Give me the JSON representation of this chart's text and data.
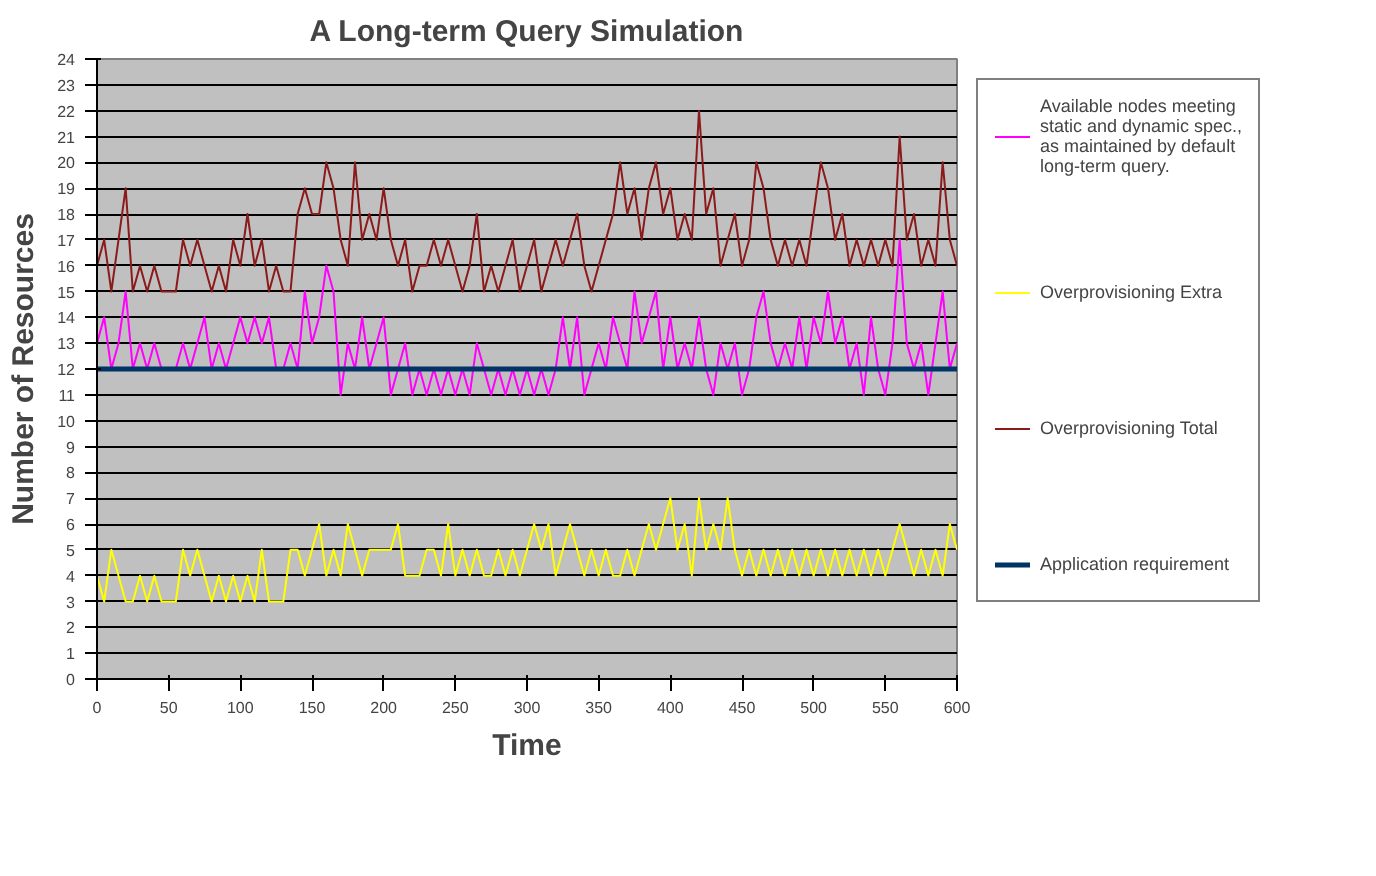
{
  "chart_data": {
    "type": "line",
    "title": "A Long-term Query Simulation",
    "xlabel": "Time",
    "ylabel": "Number of Resources",
    "x": [
      0,
      5,
      10,
      15,
      20,
      25,
      30,
      35,
      40,
      45,
      50,
      55,
      60,
      65,
      70,
      75,
      80,
      85,
      90,
      95,
      100,
      105,
      110,
      115,
      120,
      125,
      130,
      135,
      140,
      145,
      150,
      155,
      160,
      165,
      170,
      175,
      180,
      185,
      190,
      195,
      200,
      205,
      210,
      215,
      220,
      225,
      230,
      235,
      240,
      245,
      250,
      255,
      260,
      265,
      270,
      275,
      280,
      285,
      290,
      295,
      300,
      305,
      310,
      315,
      320,
      325,
      330,
      335,
      340,
      345,
      350,
      355,
      360,
      365,
      370,
      375,
      380,
      385,
      390,
      395,
      400,
      405,
      410,
      415,
      420,
      425,
      430,
      435,
      440,
      445,
      450,
      455,
      460,
      465,
      470,
      475,
      480,
      485,
      490,
      495,
      500,
      505,
      510,
      515,
      520,
      525,
      530,
      535,
      540,
      545,
      550,
      555,
      560,
      565,
      570,
      575,
      580,
      585,
      590,
      595,
      600
    ],
    "series": [
      {
        "name": "Available nodes meeting static and dynamic spec., as maintained by default long-term query.",
        "color": "#ff00ff",
        "values": [
          13,
          14,
          12,
          13,
          15,
          12,
          13,
          12,
          13,
          12,
          12,
          12,
          13,
          12,
          13,
          14,
          12,
          13,
          12,
          13,
          14,
          13,
          14,
          13,
          14,
          12,
          12,
          13,
          12,
          15,
          13,
          14,
          16,
          15,
          11,
          13,
          12,
          14,
          12,
          13,
          14,
          11,
          12,
          13,
          11,
          12,
          11,
          12,
          11,
          12,
          11,
          12,
          11,
          13,
          12,
          11,
          12,
          11,
          12,
          11,
          12,
          11,
          12,
          11,
          12,
          14,
          12,
          14,
          11,
          12,
          13,
          12,
          14,
          13,
          12,
          15,
          13,
          14,
          15,
          12,
          14,
          12,
          13,
          12,
          14,
          12,
          11,
          13,
          12,
          13,
          11,
          12,
          14,
          15,
          13,
          12,
          13,
          12,
          14,
          12,
          14,
          13,
          15,
          13,
          14,
          12,
          13,
          11,
          14,
          12,
          11,
          13,
          17,
          13,
          12,
          13,
          11,
          13,
          15,
          12,
          13
        ]
      },
      {
        "name": "Overprovisioning Extra",
        "color": "#ffff00",
        "values": [
          4,
          3,
          5,
          4,
          3,
          3,
          4,
          3,
          4,
          3,
          3,
          3,
          5,
          4,
          5,
          4,
          3,
          4,
          3,
          4,
          3,
          4,
          3,
          5,
          3,
          3,
          3,
          5,
          5,
          4,
          5,
          6,
          4,
          5,
          4,
          6,
          5,
          4,
          5,
          5,
          5,
          5,
          6,
          4,
          4,
          4,
          5,
          5,
          4,
          6,
          4,
          5,
          4,
          5,
          4,
          4,
          5,
          4,
          5,
          4,
          5,
          6,
          5,
          6,
          4,
          5,
          6,
          5,
          4,
          5,
          4,
          5,
          4,
          4,
          5,
          4,
          5,
          6,
          5,
          6,
          7,
          5,
          6,
          4,
          7,
          5,
          6,
          5,
          7,
          5,
          4,
          5,
          4,
          5,
          4,
          5,
          4,
          5,
          4,
          5,
          4,
          5,
          4,
          5,
          4,
          5,
          4,
          5,
          4,
          5,
          4,
          5,
          6,
          5,
          4,
          5,
          4,
          5,
          4,
          6,
          5
        ]
      },
      {
        "name": "Overprovisioning Total",
        "color": "#8b1a1a",
        "values": [
          16,
          17,
          15,
          17,
          19,
          15,
          16,
          15,
          16,
          15,
          15,
          15,
          17,
          16,
          17,
          16,
          15,
          16,
          15,
          17,
          16,
          18,
          16,
          17,
          15,
          16,
          15,
          15,
          18,
          19,
          18,
          18,
          20,
          19,
          17,
          16,
          20,
          17,
          18,
          17,
          19,
          17,
          16,
          17,
          15,
          16,
          16,
          17,
          16,
          17,
          16,
          15,
          16,
          18,
          15,
          16,
          15,
          16,
          17,
          15,
          16,
          17,
          15,
          16,
          17,
          16,
          17,
          18,
          16,
          15,
          16,
          17,
          18,
          20,
          18,
          19,
          17,
          19,
          20,
          18,
          19,
          17,
          18,
          17,
          22,
          18,
          19,
          16,
          17,
          18,
          16,
          17,
          20,
          19,
          17,
          16,
          17,
          16,
          17,
          16,
          18,
          20,
          19,
          17,
          18,
          16,
          17,
          16,
          17,
          16,
          17,
          16,
          21,
          17,
          18,
          16,
          17,
          16,
          20,
          17,
          16
        ]
      },
      {
        "name": "Application requirement",
        "color": "#003366",
        "x": [
          0,
          600
        ],
        "values": [
          12,
          12
        ]
      }
    ],
    "xlim": [
      0,
      600
    ],
    "xticks": [
      0,
      50,
      100,
      150,
      200,
      250,
      300,
      350,
      400,
      450,
      500,
      550,
      600
    ],
    "ylim": [
      0,
      24
    ],
    "yticks": [
      0,
      1,
      2,
      3,
      4,
      5,
      6,
      7,
      8,
      9,
      10,
      11,
      12,
      13,
      14,
      15,
      16,
      17,
      18,
      19,
      20,
      21,
      22,
      23,
      24
    ],
    "grid": "y",
    "legend": "right",
    "marker": "none",
    "line_style": "solid"
  }
}
